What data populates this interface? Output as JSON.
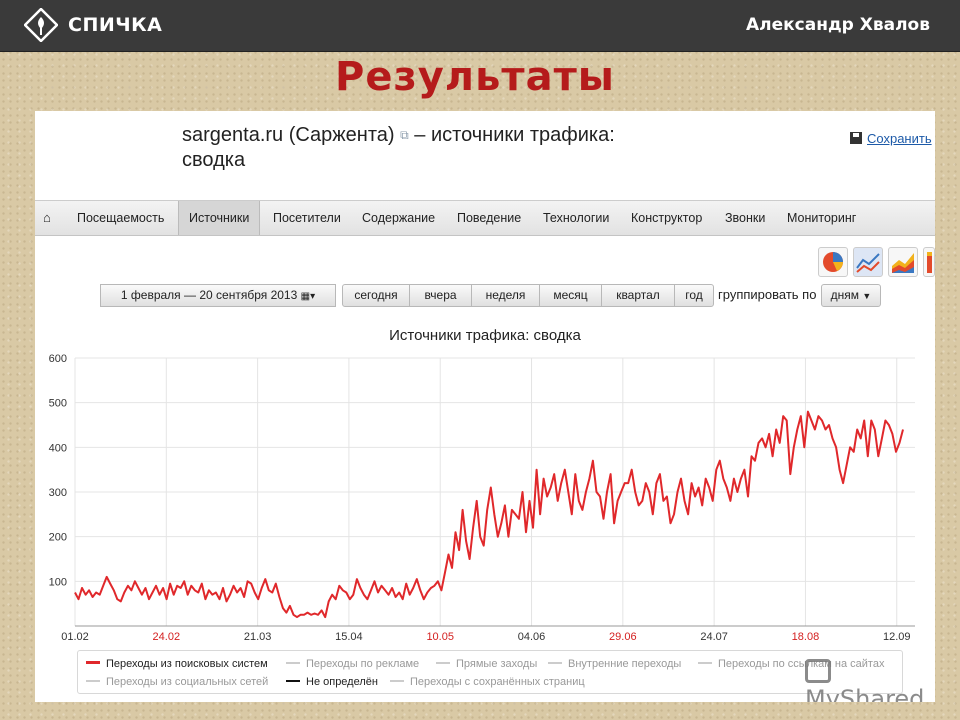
{
  "header": {
    "brand": "СПИЧКА",
    "author": "Александр Хвалов"
  },
  "slide_title": "Результаты",
  "report": {
    "site": "sargenta.ru (Саржента)",
    "title_suffix": "– источники трафика:",
    "title_line2": "сводка",
    "save_label": "Сохранить"
  },
  "nav": {
    "items": [
      "Посещаемость",
      "Источники",
      "Посетители",
      "Содержание",
      "Поведение",
      "Технологии",
      "Конструктор",
      "Звонки",
      "Мониторинг"
    ],
    "active": "Источники"
  },
  "toolbar": {
    "date_range": "1 февраля — 20 сентября 2013",
    "periods": [
      "сегодня",
      "вчера",
      "неделя",
      "месяц",
      "квартал",
      "год"
    ],
    "group_label": "группировать по",
    "group_value": "дням"
  },
  "chart_icons": [
    "pie-chart-icon",
    "line-chart-icon",
    "area-chart-icon",
    "bar-chart-icon"
  ],
  "chart_data": {
    "type": "line",
    "title": "Источники трафика: сводка",
    "ylim": [
      0,
      600
    ],
    "yticks": [
      100,
      200,
      300,
      400,
      500,
      600
    ],
    "x_ticks": [
      "01.02",
      "24.02",
      "21.03",
      "15.04",
      "10.05",
      "04.06",
      "29.06",
      "24.07",
      "18.08",
      "12.09"
    ],
    "x_tick_weekend": [
      false,
      true,
      false,
      false,
      true,
      false,
      true,
      false,
      true,
      false
    ],
    "series": [
      {
        "name": "Переходы из поисковых систем",
        "color": "#e0282b",
        "values": [
          75,
          60,
          85,
          70,
          80,
          65,
          75,
          70,
          90,
          110,
          95,
          80,
          60,
          55,
          75,
          90,
          80,
          100,
          85,
          70,
          85,
          60,
          75,
          90,
          70,
          85,
          60,
          95,
          70,
          90,
          85,
          100,
          70,
          90,
          80,
          75,
          95,
          60,
          80,
          70,
          75,
          60,
          85,
          55,
          70,
          90,
          75,
          85,
          65,
          100,
          95,
          75,
          60,
          85,
          105,
          80,
          75,
          95,
          65,
          40,
          30,
          45,
          25,
          20,
          25,
          25,
          30,
          25,
          28,
          25,
          35,
          20,
          55,
          70,
          60,
          90,
          80,
          75,
          60,
          70,
          105,
          85,
          70,
          60,
          80,
          100,
          75,
          90,
          80,
          70,
          85,
          65,
          75,
          60,
          95,
          70,
          85,
          105,
          80,
          60,
          75,
          85,
          90,
          100,
          80,
          120,
          160,
          130,
          210,
          170,
          260,
          190,
          150,
          220,
          280,
          200,
          180,
          260,
          310,
          250,
          200,
          230,
          270,
          200,
          260,
          250,
          240,
          300,
          210,
          280,
          220,
          350,
          250,
          330,
          290,
          310,
          340,
          280,
          320,
          350,
          300,
          250,
          340,
          280,
          260,
          300,
          330,
          370,
          300,
          290,
          240,
          300,
          340,
          230,
          280,
          300,
          320,
          320,
          350,
          300,
          270,
          280,
          320,
          300,
          250,
          320,
          340,
          280,
          290,
          230,
          250,
          300,
          330,
          280,
          250,
          320,
          290,
          310,
          270,
          330,
          310,
          280,
          350,
          370,
          330,
          310,
          280,
          330,
          300,
          330,
          350,
          290,
          380,
          370,
          410,
          420,
          400,
          430,
          380,
          440,
          410,
          470,
          460,
          340,
          400,
          440,
          470,
          400,
          480,
          460,
          440,
          470,
          460,
          440,
          450,
          420,
          400,
          350,
          320,
          360,
          400,
          390,
          440,
          420,
          460,
          380,
          460,
          440,
          380,
          420,
          460,
          450,
          430,
          390,
          410,
          440
        ],
        "selected": true
      }
    ],
    "legend": [
      {
        "name": "Переходы из поисковых систем",
        "selected": true,
        "color": "#e0282b"
      },
      {
        "name": "Переходы по рекламе",
        "selected": false
      },
      {
        "name": "Прямые заходы",
        "selected": false
      },
      {
        "name": "Внутренние переходы",
        "selected": false
      },
      {
        "name": "Переходы по ссылкам на сайтах",
        "selected": false
      },
      {
        "name": "Переходы из социальных сетей",
        "selected": false
      },
      {
        "name": "Не определён",
        "selected": true,
        "color": "#111111"
      },
      {
        "name": "Переходы с сохранённых страниц",
        "selected": false
      }
    ]
  },
  "watermark": "MyShared"
}
